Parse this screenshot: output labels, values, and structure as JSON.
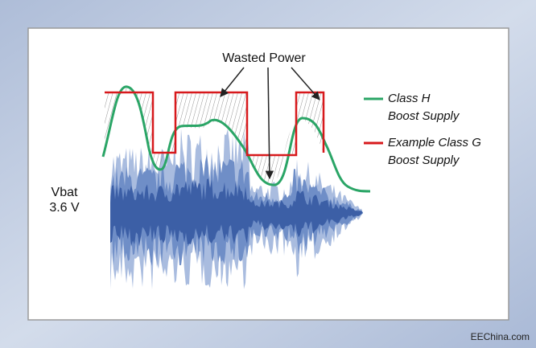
{
  "annotation": "Wasted Power",
  "legend": [
    {
      "lines": [
        "Class H",
        "Boost Supply"
      ]
    },
    {
      "lines": [
        "Example Class G",
        "Boost Supply"
      ]
    }
  ],
  "vbat_label": [
    "Vbat",
    "3.6 V"
  ],
  "watermark": "EEChina.com"
}
